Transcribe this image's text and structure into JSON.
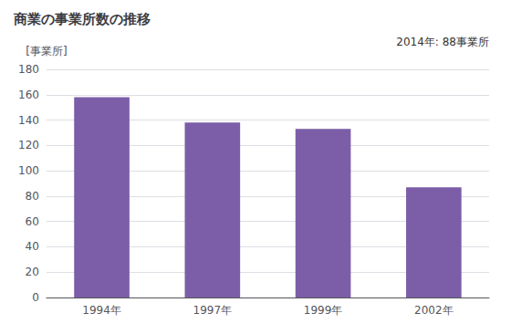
{
  "chart_data": {
    "type": "bar",
    "title": "商業の事業所数の推移",
    "ylabel": "[事業所]",
    "annotation": "2014年: 88事業所",
    "categories": [
      "1994年",
      "1997年",
      "1999年",
      "2002年"
    ],
    "values": [
      158,
      138,
      133,
      87
    ],
    "color": "#7B5EA7",
    "ylim": [
      0,
      180
    ],
    "yticks": [
      0,
      20,
      40,
      60,
      80,
      100,
      120,
      140,
      160,
      180
    ],
    "grid": true
  }
}
